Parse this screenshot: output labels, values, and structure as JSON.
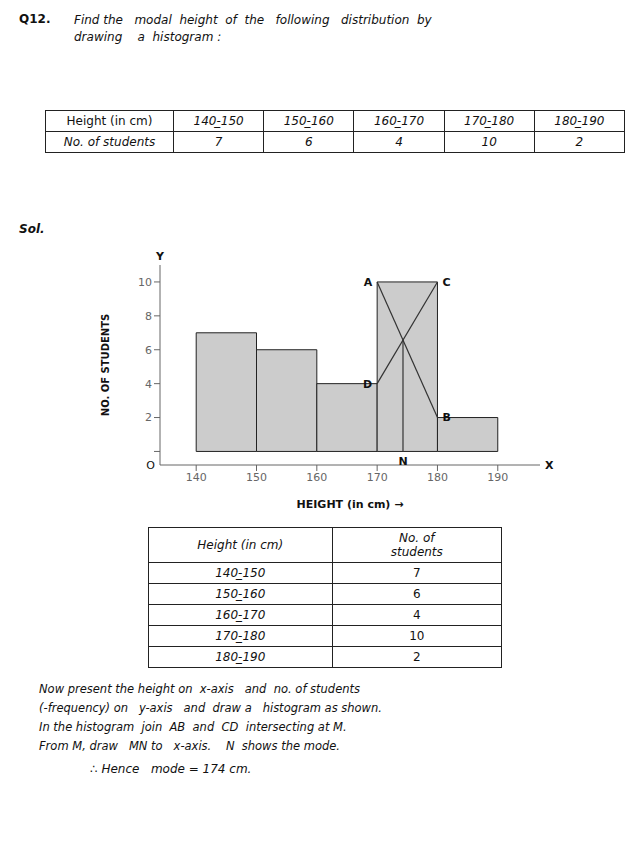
{
  "chart_data": {
    "type": "histogram",
    "header": [
      "Q12.",
      "Find the   modal  height  of  the   following   distribution  by",
      "drawing    a  histogram :"
    ],
    "tables": [
      {
        "rows": [
          [
            "Height (in cm)",
            "140-̲150",
            "150-̲160",
            "160-̲170",
            "170-̲180",
            "180-̲190"
          ],
          [
            "No. of students",
            "7",
            "6",
            "4",
            "10",
            "2"
          ]
        ]
      },
      {
        "rows": [
          [
            "Height (in cm)",
            "No. of\nstudents"
          ],
          [
            "140-̲150",
            "7"
          ],
          [
            "150-̲160",
            "6"
          ],
          [
            "160-̲170",
            "4"
          ],
          [
            "170-̲180",
            "10"
          ],
          [
            "180-̲190",
            "2"
          ]
        ]
      }
    ],
    "solution_label": "Sol.",
    "bins": [
      140,
      150,
      160,
      170,
      180,
      190
    ],
    "values": [
      7,
      6,
      4,
      10,
      2
    ],
    "color": "#cccccc",
    "edgecolor": "#222222",
    "xlabel": "HEIGHT (in cm)  →",
    "ylabel": "NO. OF STUDENTS",
    "xlim": [
      134,
      197
    ],
    "ylim": [
      -0.8,
      11
    ],
    "xticks": [
      140,
      150,
      160,
      170,
      180,
      190
    ],
    "yticks": [
      {
        "value": 0,
        "label": ""
      },
      2,
      4,
      6,
      8,
      10
    ],
    "grid": false,
    "lines": [
      {
        "x": [
          170,
          180
        ],
        "y": [
          10,
          2
        ],
        "color": "#333333"
      },
      {
        "x": [
          180,
          170
        ],
        "y": [
          10,
          4
        ],
        "color": "#333333"
      },
      {
        "x": [
          174.28571428571428,
          174.28571428571428
        ],
        "y": [
          0,
          6.571428571428571
        ],
        "color": "#333333"
      }
    ],
    "annotations": [
      {
        "text": "A",
        "x": 170,
        "y": 10
      },
      {
        "text": "C",
        "x": 180,
        "y": 10
      },
      {
        "text": "D",
        "x": 170,
        "y": 4
      },
      {
        "text": "B",
        "x": 180,
        "y": 2
      },
      {
        "text": "N",
        "x": 174.28571428571428,
        "y": -0.55
      }
    ],
    "axis_letters": {
      "x": "X",
      "y": "Y",
      "origin": "O"
    },
    "notes": [
      "Now present the height on  x-axis   and  no. of students",
      "(-frequency) on   y-axis   and  draw a   histogram as shown.",
      "In the histogram  join  AB  and  CD  intersecting at M.",
      "From M, draw   MN to   x-axis.    N  shows the mode."
    ],
    "conclusion": "∴ Hence   mode = 174 cm."
  }
}
